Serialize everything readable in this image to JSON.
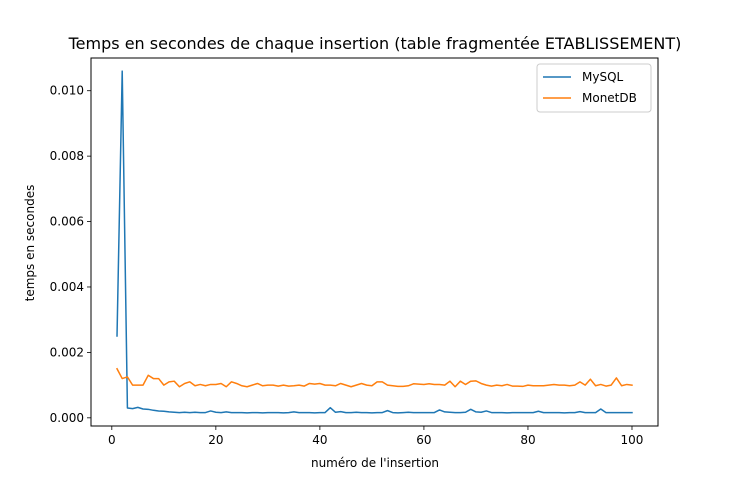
{
  "chart_data": {
    "type": "line",
    "title": "Temps en secondes de chaque insertion (table fragmentée ETABLISSEMENT)",
    "xlabel": "numéro de l'insertion",
    "ylabel": "temps en secondes",
    "xlim": [
      -4,
      105
    ],
    "ylim": [
      -0.00025,
      0.011
    ],
    "xticks": [
      0,
      20,
      40,
      60,
      80,
      100
    ],
    "yticks": [
      0.0,
      0.002,
      0.004,
      0.006,
      0.008,
      0.01
    ],
    "ytick_labels": [
      "0.000",
      "0.002",
      "0.004",
      "0.006",
      "0.008",
      "0.010"
    ],
    "grid": false,
    "legend_position": "top-right",
    "x": [
      1,
      2,
      3,
      4,
      5,
      6,
      7,
      8,
      9,
      10,
      11,
      12,
      13,
      14,
      15,
      16,
      17,
      18,
      19,
      20,
      21,
      22,
      23,
      24,
      25,
      26,
      27,
      28,
      29,
      30,
      31,
      32,
      33,
      34,
      35,
      36,
      37,
      38,
      39,
      40,
      41,
      42,
      43,
      44,
      45,
      46,
      47,
      48,
      49,
      50,
      51,
      52,
      53,
      54,
      55,
      56,
      57,
      58,
      59,
      60,
      61,
      62,
      63,
      64,
      65,
      66,
      67,
      68,
      69,
      70,
      71,
      72,
      73,
      74,
      75,
      76,
      77,
      78,
      79,
      80,
      81,
      82,
      83,
      84,
      85,
      86,
      87,
      88,
      89,
      90,
      91,
      92,
      93,
      94,
      95,
      96,
      97,
      98,
      99,
      100
    ],
    "series": [
      {
        "name": "MySQL",
        "color": "#1f77b4",
        "values": [
          0.0025,
          0.0106,
          0.0003,
          0.00028,
          0.00032,
          0.00027,
          0.00026,
          0.00023,
          0.00021,
          0.0002,
          0.00018,
          0.00017,
          0.00016,
          0.00017,
          0.00016,
          0.00017,
          0.00016,
          0.00016,
          0.00021,
          0.00017,
          0.00016,
          0.00018,
          0.00016,
          0.00016,
          0.00016,
          0.00015,
          0.00016,
          0.00016,
          0.00015,
          0.00016,
          0.00016,
          0.00016,
          0.00015,
          0.00016,
          0.00018,
          0.00016,
          0.00016,
          0.00016,
          0.00015,
          0.00016,
          0.00016,
          0.00031,
          0.00017,
          0.00019,
          0.00016,
          0.00016,
          0.00017,
          0.00016,
          0.00016,
          0.00015,
          0.00016,
          0.00016,
          0.00022,
          0.00016,
          0.00015,
          0.00016,
          0.00017,
          0.00016,
          0.00016,
          0.00016,
          0.00016,
          0.00016,
          0.00024,
          0.00018,
          0.00017,
          0.00016,
          0.00016,
          0.00017,
          0.00026,
          0.00018,
          0.00017,
          0.00021,
          0.00016,
          0.00016,
          0.00016,
          0.00015,
          0.00016,
          0.00016,
          0.00016,
          0.00016,
          0.00016,
          0.0002,
          0.00016,
          0.00016,
          0.00016,
          0.00016,
          0.00015,
          0.00016,
          0.00016,
          0.00019,
          0.00016,
          0.00016,
          0.00016,
          0.00027,
          0.00016,
          0.00016,
          0.00016,
          0.00016,
          0.00016,
          0.00016
        ]
      },
      {
        "name": "MonetDB",
        "color": "#ff7f0e",
        "values": [
          0.0015,
          0.0012,
          0.00125,
          0.001,
          0.001,
          0.001,
          0.0013,
          0.0012,
          0.0012,
          0.001,
          0.0011,
          0.00112,
          0.00095,
          0.00105,
          0.0011,
          0.00098,
          0.00102,
          0.00098,
          0.00102,
          0.00102,
          0.00105,
          0.00095,
          0.0011,
          0.00105,
          0.00098,
          0.00095,
          0.001,
          0.00105,
          0.00098,
          0.001,
          0.001,
          0.00097,
          0.001,
          0.00097,
          0.00098,
          0.001,
          0.00097,
          0.00105,
          0.00103,
          0.00105,
          0.001,
          0.001,
          0.00098,
          0.00105,
          0.001,
          0.00095,
          0.001,
          0.00105,
          0.001,
          0.00098,
          0.0011,
          0.0011,
          0.001,
          0.00098,
          0.00096,
          0.00096,
          0.00098,
          0.00104,
          0.00103,
          0.00102,
          0.00104,
          0.00102,
          0.00102,
          0.001,
          0.00112,
          0.00095,
          0.00112,
          0.00102,
          0.00112,
          0.00113,
          0.00105,
          0.001,
          0.00097,
          0.001,
          0.00098,
          0.00102,
          0.00097,
          0.00097,
          0.00096,
          0.001,
          0.00098,
          0.00098,
          0.00098,
          0.001,
          0.00102,
          0.001,
          0.001,
          0.00098,
          0.001,
          0.0011,
          0.001,
          0.00118,
          0.00098,
          0.00102,
          0.00097,
          0.001,
          0.00122,
          0.00098,
          0.00102,
          0.001
        ]
      }
    ]
  }
}
